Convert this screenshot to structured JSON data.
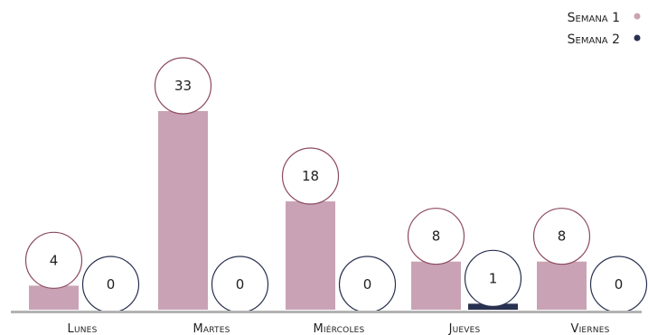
{
  "chart_data": {
    "type": "bar",
    "categories": [
      "Lunes",
      "Martes",
      "Miércoles",
      "Jueves",
      "Viernes"
    ],
    "series": [
      {
        "name": "Semana 1",
        "values": [
          4,
          33,
          18,
          8,
          8
        ],
        "color": "#c9a3b5",
        "label_ring_color": "#8c4a5e"
      },
      {
        "name": "Semana 2",
        "values": [
          0,
          0,
          0,
          1,
          0
        ],
        "color": "#28314f",
        "label_ring_color": "#28314f"
      }
    ],
    "ylim": [
      0,
      36
    ],
    "legend_position": "top-right",
    "grid": false,
    "axis_color": "#b3b3b3"
  }
}
